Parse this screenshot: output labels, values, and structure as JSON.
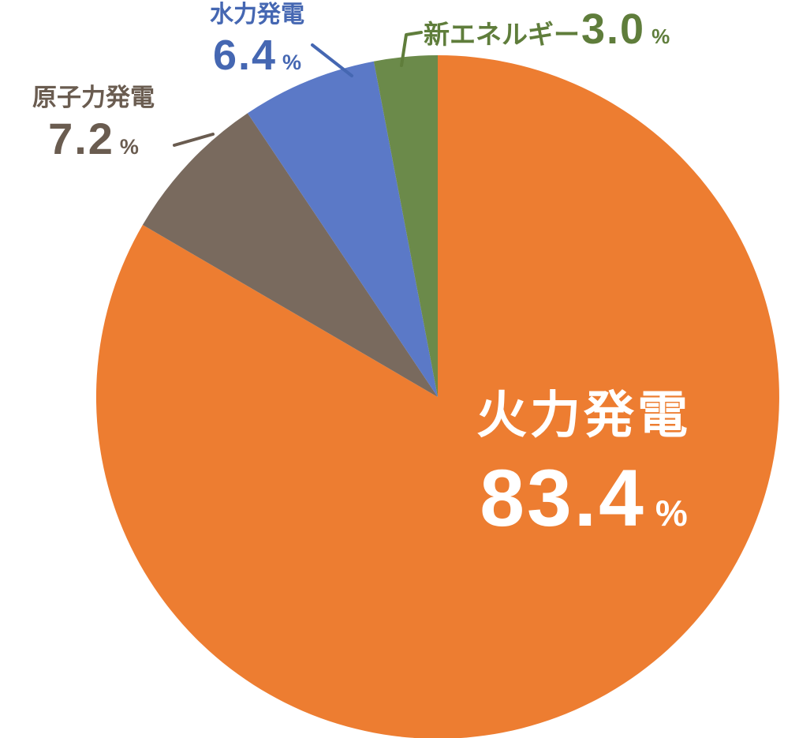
{
  "chart_data": {
    "type": "pie",
    "unit": "%",
    "start_angle_deg": 0,
    "direction": "clockwise",
    "background_color": "#FFFFFF",
    "slices": [
      {
        "key": "thermal",
        "label": "火力発電",
        "value": 83.4,
        "value_display": "83.4",
        "color": "#ED7D31",
        "label_color": "#FFFFFF"
      },
      {
        "key": "nuclear",
        "label": "原子力発電",
        "value": 7.2,
        "value_display": "7.2",
        "color": "#796A5E",
        "label_color": "#6A5C50"
      },
      {
        "key": "hydro",
        "label": "水力発電",
        "value": 6.4,
        "value_display": "6.4",
        "color": "#5B79C7",
        "label_color": "#4567B2"
      },
      {
        "key": "new_energy",
        "label": "新エネルギー",
        "value": 3.0,
        "value_display": "3.0",
        "color": "#6B8A4A",
        "label_color": "#5F7D3B"
      }
    ]
  }
}
